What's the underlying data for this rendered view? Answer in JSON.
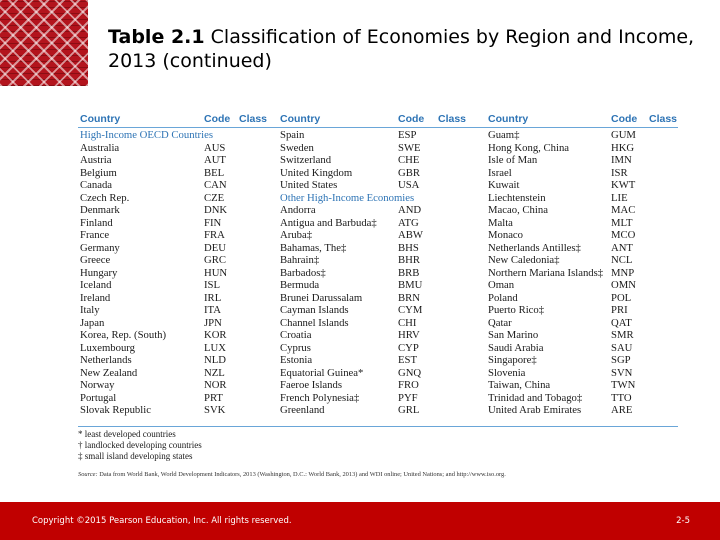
{
  "title": {
    "bold": "Table 2.1",
    "rest": "Classification of Economies by Region and Income, 2013 (continued)"
  },
  "table": {
    "headers": [
      "Country",
      "Code",
      "Class",
      "Country",
      "Code",
      "Class",
      "Country",
      "Code",
      "Class"
    ],
    "columns": [
      [
        {
          "group": "High-Income OECD Countries"
        },
        {
          "country": "Australia",
          "code": "AUS"
        },
        {
          "country": "Austria",
          "code": "AUT"
        },
        {
          "country": "Belgium",
          "code": "BEL"
        },
        {
          "country": "Canada",
          "code": "CAN"
        },
        {
          "country": "Czech Rep.",
          "code": "CZE"
        },
        {
          "country": "Denmark",
          "code": "DNK"
        },
        {
          "country": "Finland",
          "code": "FIN"
        },
        {
          "country": "France",
          "code": "FRA"
        },
        {
          "country": "Germany",
          "code": "DEU"
        },
        {
          "country": "Greece",
          "code": "GRC"
        },
        {
          "country": "Hungary",
          "code": "HUN"
        },
        {
          "country": "Iceland",
          "code": "ISL"
        },
        {
          "country": "Ireland",
          "code": "IRL"
        },
        {
          "country": "Italy",
          "code": "ITA"
        },
        {
          "country": "Japan",
          "code": "JPN"
        },
        {
          "country": "Korea, Rep. (South)",
          "code": "KOR"
        },
        {
          "country": "Luxembourg",
          "code": "LUX"
        },
        {
          "country": "Netherlands",
          "code": "NLD"
        },
        {
          "country": "New Zealand",
          "code": "NZL"
        },
        {
          "country": "Norway",
          "code": "NOR"
        },
        {
          "country": "Portugal",
          "code": "PRT"
        },
        {
          "country": "Slovak Republic",
          "code": "SVK"
        }
      ],
      [
        {
          "country": "Spain",
          "code": "ESP"
        },
        {
          "country": "Sweden",
          "code": "SWE"
        },
        {
          "country": "Switzerland",
          "code": "CHE"
        },
        {
          "country": "United Kingdom",
          "code": "GBR"
        },
        {
          "country": "United States",
          "code": "USA"
        },
        {
          "group": "Other High-Income Economies"
        },
        {
          "country": "Andorra",
          "code": "AND"
        },
        {
          "country": "Antigua and Barbuda‡",
          "code": "ATG"
        },
        {
          "country": "Aruba‡",
          "code": "ABW"
        },
        {
          "country": "Bahamas, The‡",
          "code": "BHS"
        },
        {
          "country": "Bahrain‡",
          "code": "BHR"
        },
        {
          "country": "Barbados‡",
          "code": "BRB"
        },
        {
          "country": "Bermuda",
          "code": "BMU"
        },
        {
          "country": "Brunei Darussalam",
          "code": "BRN"
        },
        {
          "country": "Cayman Islands",
          "code": "CYM"
        },
        {
          "country": "Channel Islands",
          "code": "CHI"
        },
        {
          "country": "Croatia",
          "code": "HRV"
        },
        {
          "country": "Cyprus",
          "code": "CYP"
        },
        {
          "country": "Estonia",
          "code": "EST"
        },
        {
          "country": "Equatorial Guinea*",
          "code": "GNQ"
        },
        {
          "country": "Faeroe Islands",
          "code": "FRO"
        },
        {
          "country": "French Polynesia‡",
          "code": "PYF"
        },
        {
          "country": "Greenland",
          "code": "GRL"
        }
      ],
      [
        {
          "country": "Guam‡",
          "code": "GUM"
        },
        {
          "country": "Hong Kong, China",
          "code": "HKG"
        },
        {
          "country": "Isle of Man",
          "code": "IMN"
        },
        {
          "country": "Israel",
          "code": "ISR"
        },
        {
          "country": "Kuwait",
          "code": "KWT"
        },
        {
          "country": "Liechtenstein",
          "code": "LIE"
        },
        {
          "country": "Macao, China",
          "code": "MAC"
        },
        {
          "country": "Malta",
          "code": "MLT"
        },
        {
          "country": "Monaco",
          "code": "MCO"
        },
        {
          "country": "Netherlands Antilles‡",
          "code": "ANT"
        },
        {
          "country": "New Caledonia‡",
          "code": "NCL"
        },
        {
          "country": "Northern Mariana Islands‡",
          "code": "MNP"
        },
        {
          "country": "Oman",
          "code": "OMN"
        },
        {
          "country": "Poland",
          "code": "POL"
        },
        {
          "country": "Puerto Rico‡",
          "code": "PRI"
        },
        {
          "country": "Qatar",
          "code": "QAT"
        },
        {
          "country": "San Marino",
          "code": "SMR"
        },
        {
          "country": "Saudi Arabia",
          "code": "SAU"
        },
        {
          "country": "Singapore‡",
          "code": "SGP"
        },
        {
          "country": "Slovenia",
          "code": "SVN"
        },
        {
          "country": "Taiwan, China",
          "code": "TWN"
        },
        {
          "country": "Trinidad and Tobago‡",
          "code": "TTO"
        },
        {
          "country": "United Arab Emirates",
          "code": "ARE"
        }
      ]
    ]
  },
  "legend": [
    "* least developed countries",
    "† landlocked developing countries",
    "‡ small island developing states"
  ],
  "source": {
    "label": "Source:",
    "text": "Data from World Bank, World Development Indicators, 2013 (Washington, D.C.: World Bank, 2013) and WDI online; United Nations; and http://www.iso.org."
  },
  "footer": {
    "copyright": "Copyright ©2015 Pearson Education, Inc. All rights reserved.",
    "page": "2-5"
  }
}
